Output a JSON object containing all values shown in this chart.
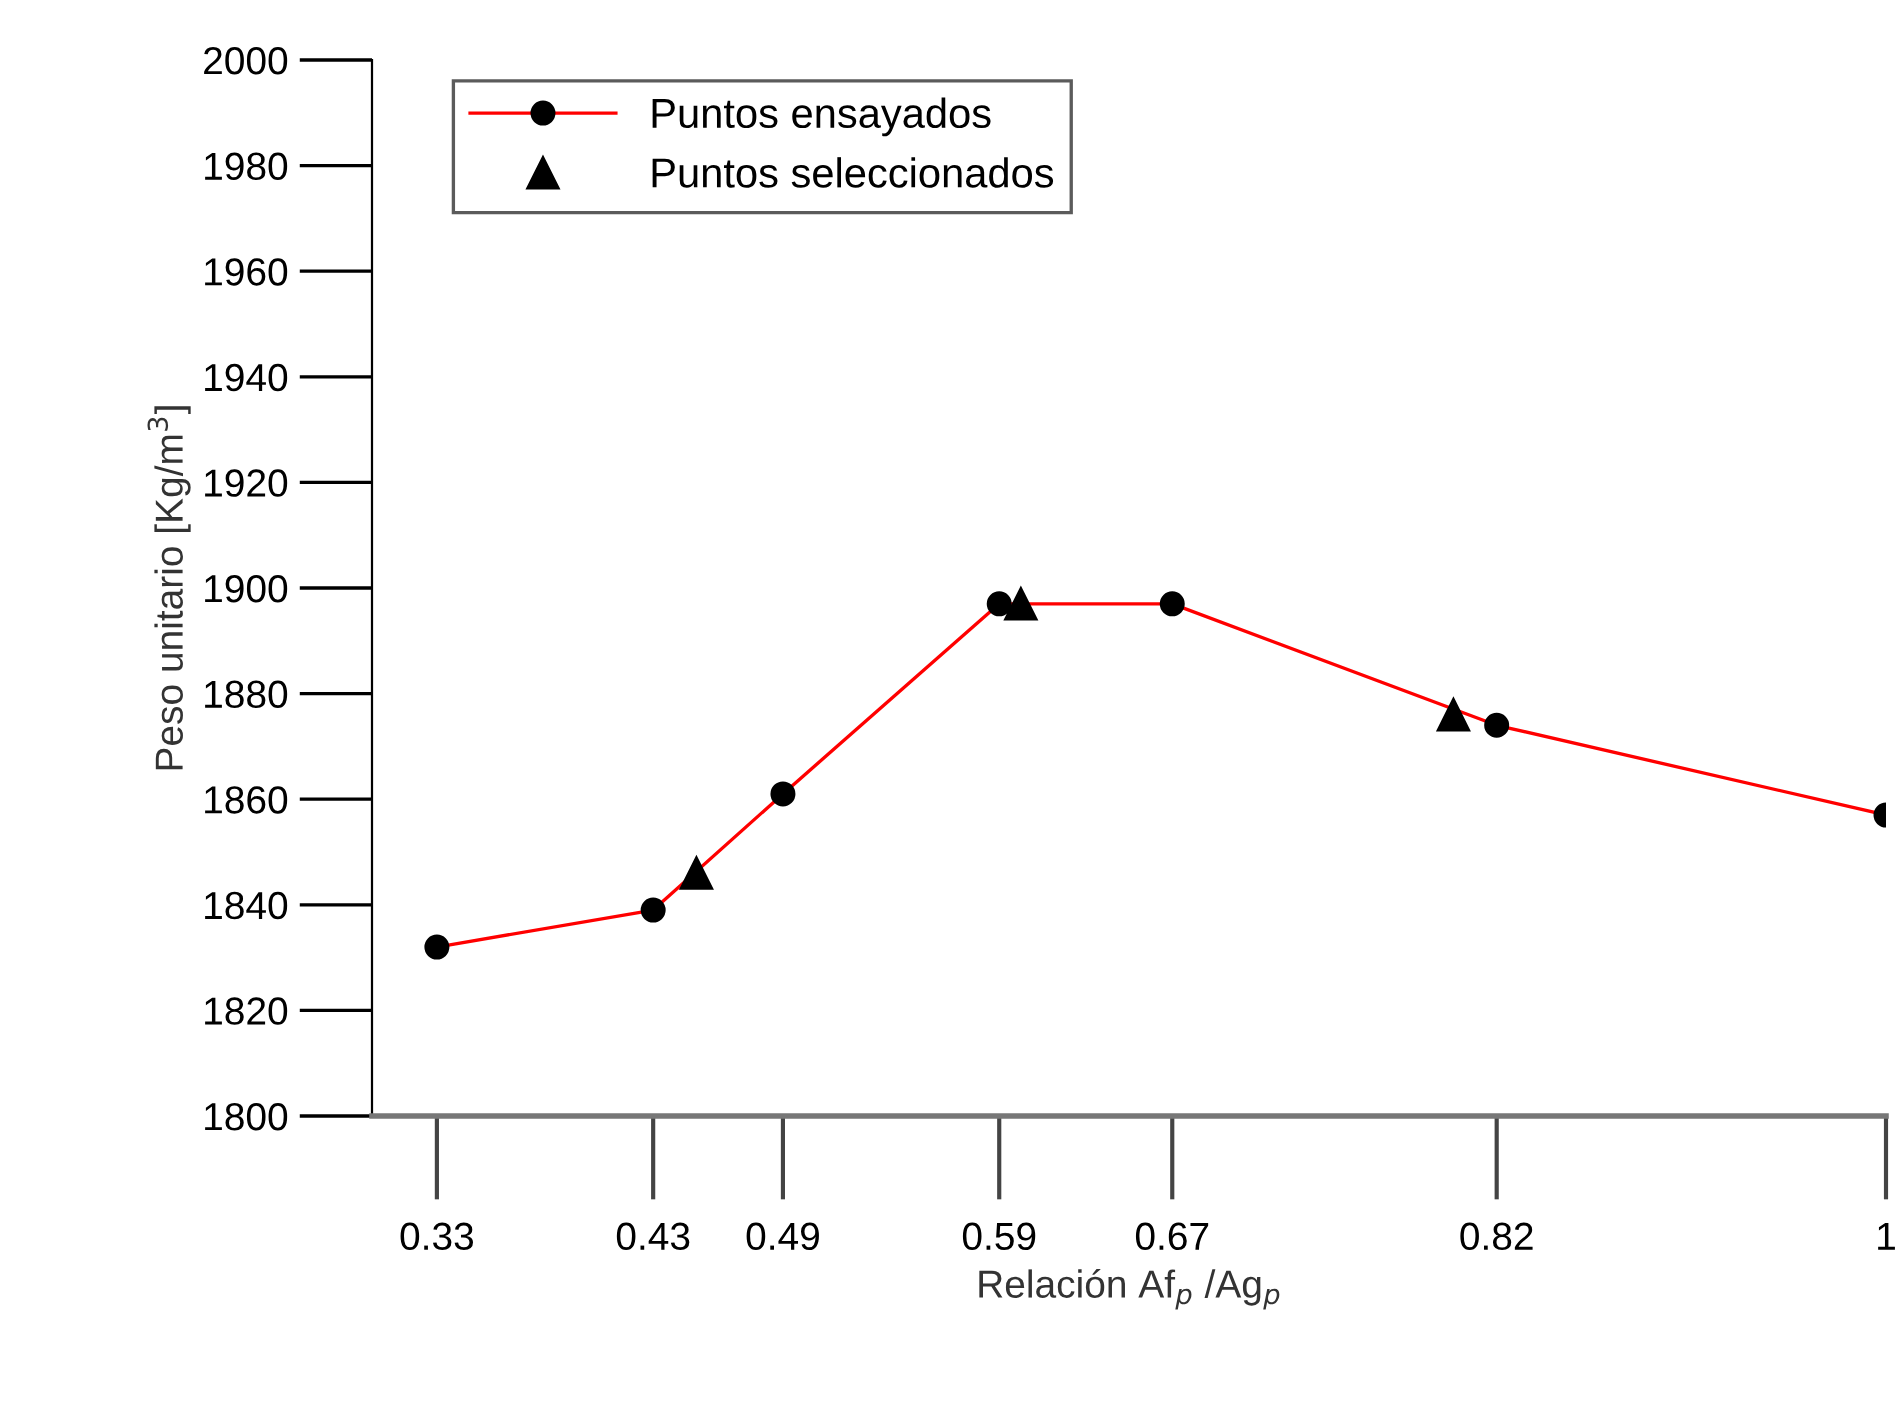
{
  "chart_data": {
    "type": "line",
    "xlabel": "Relación Af$_{p}$ /Ag$_{p}$",
    "ylabel": "Peso unitario [Kg/m$^{3}$]",
    "series": [
      {
        "name": "Puntos ensayados",
        "color": "#ff0000",
        "marker": "circle",
        "line_style": "solid",
        "x": [
          0.33,
          0.43,
          0.49,
          0.59,
          0.67,
          0.82,
          1
        ],
        "values": [
          1832,
          1839,
          1861,
          1897,
          1897,
          1874,
          1857
        ]
      },
      {
        "name": "Puntos seleccionados",
        "type": "scatter",
        "color": "#000000",
        "marker": "triangle",
        "x": [
          0.45,
          0.6,
          0.8
        ],
        "values": [
          1846,
          1897,
          1876
        ]
      }
    ],
    "xlim": [
      0.3,
      1
    ],
    "ylim": [
      1800,
      2000
    ],
    "xticks": [
      0.33,
      0.43,
      0.49,
      0.59,
      0.67,
      0.82,
      1
    ],
    "yticks": [
      1800,
      1820,
      1840,
      1860,
      1880,
      1900,
      1920,
      1940,
      1960,
      1980,
      2000
    ],
    "grid": false,
    "legend": "top left"
  }
}
